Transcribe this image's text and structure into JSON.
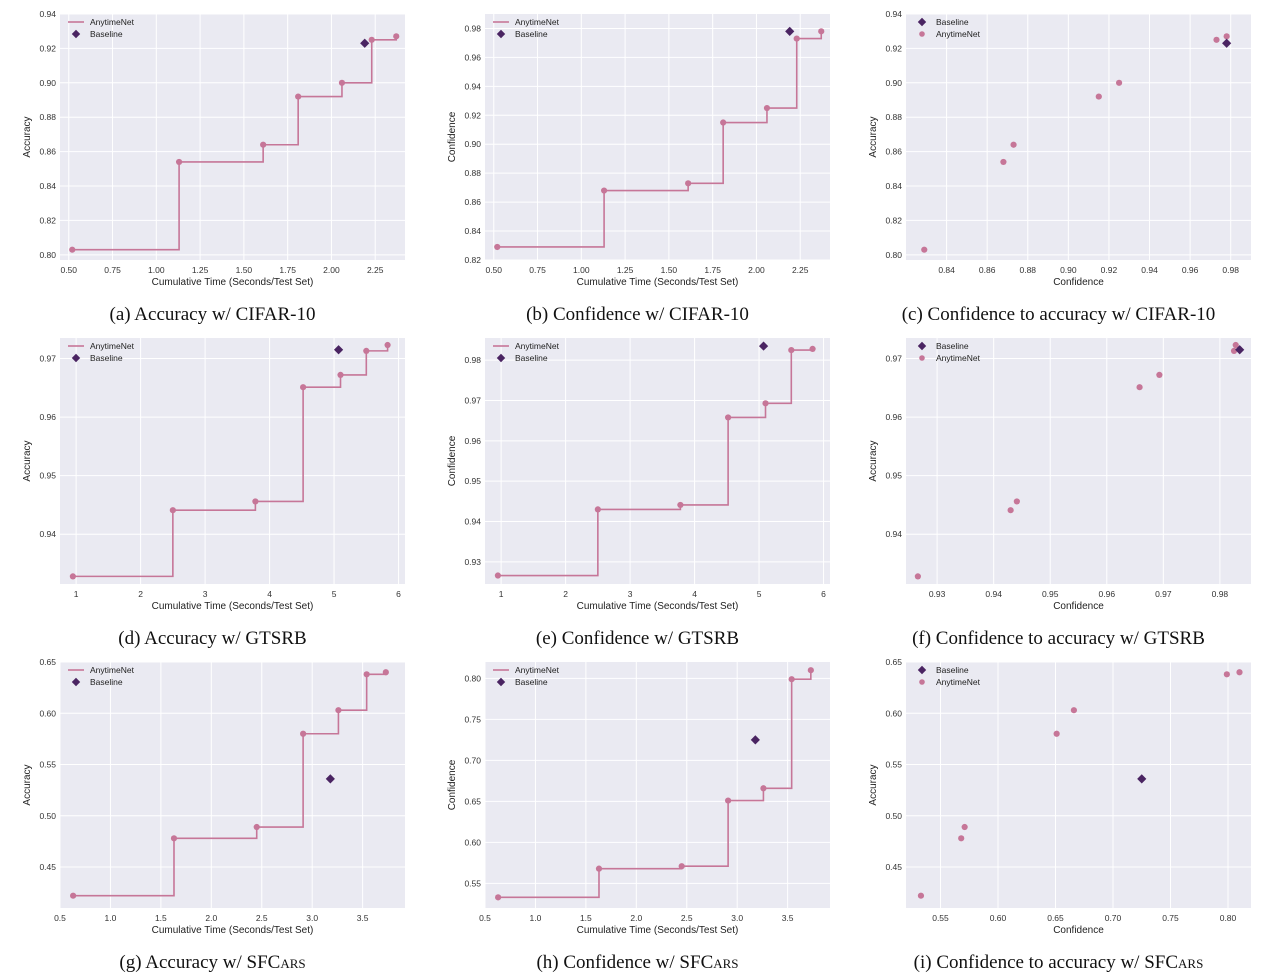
{
  "colors": {
    "background": "#eaeaf2",
    "grid": "#ffffff",
    "anytimenet": "#c67698",
    "baseline": "#4a2462",
    "tick_text": "#333333"
  },
  "legend_labels": {
    "anytimenet": "AnytimeNet",
    "baseline": "Baseline"
  },
  "chart_data": [
    {
      "id": "a",
      "type": "line",
      "caption": "(a) Accuracy w/ CIFAR-10",
      "caption_sc": "",
      "xlabel": "Cumulative Time (Seconds/Test Set)",
      "ylabel": "Accuracy",
      "xlim": [
        0.45,
        2.42
      ],
      "ylim": [
        0.797,
        0.94
      ],
      "xticks": [
        "0.50",
        "0.75",
        "1.00",
        "1.25",
        "1.50",
        "1.75",
        "2.00",
        "2.25"
      ],
      "yticks": [
        "0.80",
        "0.82",
        "0.84",
        "0.86",
        "0.88",
        "0.90",
        "0.92",
        "0.94"
      ],
      "legend_order": [
        "AnytimeNet",
        "Baseline"
      ],
      "legend": "top-left",
      "series": [
        {
          "name": "AnytimeNet",
          "step": true,
          "x": [
            0.52,
            1.13,
            1.61,
            1.81,
            2.06,
            2.23,
            2.37
          ],
          "y": [
            0.803,
            0.854,
            0.864,
            0.892,
            0.9,
            0.925,
            0.927
          ]
        },
        {
          "name": "Baseline",
          "x": [
            2.19
          ],
          "y": [
            0.923
          ]
        }
      ]
    },
    {
      "id": "b",
      "type": "line",
      "caption": "(b) Confidence w/ CIFAR-10",
      "caption_sc": "",
      "xlabel": "Cumulative Time (Seconds/Test Set)",
      "ylabel": "Confidence",
      "xlim": [
        0.45,
        2.42
      ],
      "ylim": [
        0.82,
        0.99
      ],
      "xticks": [
        "0.50",
        "0.75",
        "1.00",
        "1.25",
        "1.50",
        "1.75",
        "2.00",
        "2.25"
      ],
      "yticks": [
        "0.82",
        "0.84",
        "0.86",
        "0.88",
        "0.90",
        "0.92",
        "0.94",
        "0.96",
        "0.98"
      ],
      "legend_order": [
        "AnytimeNet",
        "Baseline"
      ],
      "legend": "top-left",
      "series": [
        {
          "name": "AnytimeNet",
          "step": true,
          "x": [
            0.52,
            1.13,
            1.61,
            1.81,
            2.06,
            2.23,
            2.37
          ],
          "y": [
            0.829,
            0.868,
            0.873,
            0.915,
            0.925,
            0.973,
            0.978
          ]
        },
        {
          "name": "Baseline",
          "x": [
            2.19
          ],
          "y": [
            0.978
          ]
        }
      ]
    },
    {
      "id": "c",
      "type": "scatter",
      "caption": "(c) Confidence to accuracy w/ CIFAR-10",
      "caption_sc": "",
      "xlabel": "Confidence",
      "ylabel": "Accuracy",
      "xlim": [
        0.82,
        0.99
      ],
      "ylim": [
        0.797,
        0.94
      ],
      "xticks": [
        "0.84",
        "0.86",
        "0.88",
        "0.90",
        "0.92",
        "0.94",
        "0.96",
        "0.98"
      ],
      "yticks": [
        "0.80",
        "0.82",
        "0.84",
        "0.86",
        "0.88",
        "0.90",
        "0.92",
        "0.94"
      ],
      "legend_order": [
        "Baseline",
        "AnytimeNet"
      ],
      "legend": "top-left",
      "series": [
        {
          "name": "AnytimeNet",
          "x": [
            0.829,
            0.868,
            0.873,
            0.915,
            0.925,
            0.973,
            0.978
          ],
          "y": [
            0.803,
            0.854,
            0.864,
            0.892,
            0.9,
            0.925,
            0.927
          ]
        },
        {
          "name": "Baseline",
          "x": [
            0.978
          ],
          "y": [
            0.923
          ]
        }
      ]
    },
    {
      "id": "d",
      "type": "line",
      "caption": "(d) Accuracy w/ GTSRB",
      "caption_sc": "",
      "xlabel": "Cumulative Time (Seconds/Test Set)",
      "ylabel": "Accuracy",
      "xlim": [
        0.75,
        6.1
      ],
      "ylim": [
        0.9315,
        0.9735
      ],
      "xticks": [
        "1",
        "2",
        "3",
        "4",
        "5",
        "6"
      ],
      "yticks": [
        "0.94",
        "0.95",
        "0.96",
        "0.97"
      ],
      "legend_order": [
        "AnytimeNet",
        "Baseline"
      ],
      "legend": "top-left",
      "series": [
        {
          "name": "AnytimeNet",
          "step": true,
          "x": [
            0.95,
            2.5,
            3.78,
            4.52,
            5.1,
            5.5,
            5.83
          ],
          "y": [
            0.9328,
            0.9441,
            0.9456,
            0.9651,
            0.9672,
            0.9713,
            0.9723
          ]
        },
        {
          "name": "Baseline",
          "x": [
            5.07
          ],
          "y": [
            0.9715
          ]
        }
      ]
    },
    {
      "id": "e",
      "type": "line",
      "caption": "(e) Confidence w/ GTSRB",
      "caption_sc": "",
      "xlabel": "Cumulative Time (Seconds/Test Set)",
      "ylabel": "Confidence",
      "xlim": [
        0.75,
        6.1
      ],
      "ylim": [
        0.9245,
        0.9855
      ],
      "xticks": [
        "1",
        "2",
        "3",
        "4",
        "5",
        "6"
      ],
      "yticks": [
        "0.93",
        "0.94",
        "0.95",
        "0.96",
        "0.97",
        "0.98"
      ],
      "legend_order": [
        "AnytimeNet",
        "Baseline"
      ],
      "legend": "top-left",
      "series": [
        {
          "name": "AnytimeNet",
          "step": true,
          "x": [
            0.95,
            2.5,
            3.78,
            4.52,
            5.1,
            5.5,
            5.83
          ],
          "y": [
            0.9266,
            0.943,
            0.9441,
            0.9658,
            0.9693,
            0.9825,
            0.9828
          ]
        },
        {
          "name": "Baseline",
          "x": [
            5.07
          ],
          "y": [
            0.9835
          ]
        }
      ]
    },
    {
      "id": "f",
      "type": "scatter",
      "caption": "(f) Confidence to accuracy w/ GTSRB",
      "caption_sc": "",
      "xlabel": "Confidence",
      "ylabel": "Accuracy",
      "xlim": [
        0.9245,
        0.9855
      ],
      "ylim": [
        0.9315,
        0.9735
      ],
      "xticks": [
        "0.93",
        "0.94",
        "0.95",
        "0.96",
        "0.97",
        "0.98"
      ],
      "yticks": [
        "0.94",
        "0.95",
        "0.96",
        "0.97"
      ],
      "legend_order": [
        "Baseline",
        "AnytimeNet"
      ],
      "legend": "top-left",
      "series": [
        {
          "name": "AnytimeNet",
          "x": [
            0.9266,
            0.943,
            0.9441,
            0.9658,
            0.9693,
            0.9825,
            0.9828
          ],
          "y": [
            0.9328,
            0.9441,
            0.9456,
            0.9651,
            0.9672,
            0.9713,
            0.9723
          ]
        },
        {
          "name": "Baseline",
          "x": [
            0.9835
          ],
          "y": [
            0.9715
          ]
        }
      ]
    },
    {
      "id": "g",
      "type": "line",
      "caption": "(g) Accuracy w/ SF",
      "caption_sc": "Cars",
      "xlabel": "Cumulative Time (Seconds/Test Set)",
      "ylabel": "Accuracy",
      "xlim": [
        0.5,
        3.92
      ],
      "ylim": [
        0.41,
        0.65
      ],
      "xticks": [
        "0.5",
        "1.0",
        "1.5",
        "2.0",
        "2.5",
        "3.0",
        "3.5"
      ],
      "yticks": [
        "0.45",
        "0.50",
        "0.55",
        "0.60",
        "0.65"
      ],
      "legend_order": [
        "AnytimeNet",
        "Baseline"
      ],
      "legend": "top-left",
      "series": [
        {
          "name": "AnytimeNet",
          "step": true,
          "x": [
            0.63,
            1.63,
            2.45,
            2.91,
            3.26,
            3.54,
            3.73
          ],
          "y": [
            0.422,
            0.478,
            0.489,
            0.58,
            0.603,
            0.638,
            0.64
          ]
        },
        {
          "name": "Baseline",
          "x": [
            3.18
          ],
          "y": [
            0.536
          ]
        }
      ]
    },
    {
      "id": "h",
      "type": "line",
      "caption": "(h) Confidence w/ SF",
      "caption_sc": "Cars",
      "xlabel": "Cumulative Time (Seconds/Test Set)",
      "ylabel": "Confidence",
      "xlim": [
        0.5,
        3.92
      ],
      "ylim": [
        0.52,
        0.82
      ],
      "xticks": [
        "0.5",
        "1.0",
        "1.5",
        "2.0",
        "2.5",
        "3.0",
        "3.5"
      ],
      "yticks": [
        "0.55",
        "0.60",
        "0.65",
        "0.70",
        "0.75",
        "0.80"
      ],
      "legend_order": [
        "AnytimeNet",
        "Baseline"
      ],
      "legend": "top-left",
      "series": [
        {
          "name": "AnytimeNet",
          "step": true,
          "x": [
            0.63,
            1.63,
            2.45,
            2.91,
            3.26,
            3.54,
            3.73
          ],
          "y": [
            0.533,
            0.568,
            0.571,
            0.651,
            0.666,
            0.799,
            0.81
          ]
        },
        {
          "name": "Baseline",
          "x": [
            3.18
          ],
          "y": [
            0.725
          ]
        }
      ]
    },
    {
      "id": "i",
      "type": "scatter",
      "caption": "(i) Confidence to accuracy w/ SF",
      "caption_sc": "Cars",
      "xlabel": "Confidence",
      "ylabel": "Accuracy",
      "xlim": [
        0.52,
        0.82
      ],
      "ylim": [
        0.41,
        0.65
      ],
      "xticks": [
        "0.55",
        "0.60",
        "0.65",
        "0.70",
        "0.75",
        "0.80"
      ],
      "yticks": [
        "0.45",
        "0.50",
        "0.55",
        "0.60",
        "0.65"
      ],
      "legend_order": [
        "Baseline",
        "AnytimeNet"
      ],
      "legend": "top-left",
      "series": [
        {
          "name": "AnytimeNet",
          "x": [
            0.533,
            0.568,
            0.571,
            0.651,
            0.666,
            0.799,
            0.81
          ],
          "y": [
            0.422,
            0.478,
            0.489,
            0.58,
            0.603,
            0.638,
            0.64
          ]
        },
        {
          "name": "Baseline",
          "x": [
            0.725
          ],
          "y": [
            0.536
          ]
        }
      ]
    }
  ]
}
